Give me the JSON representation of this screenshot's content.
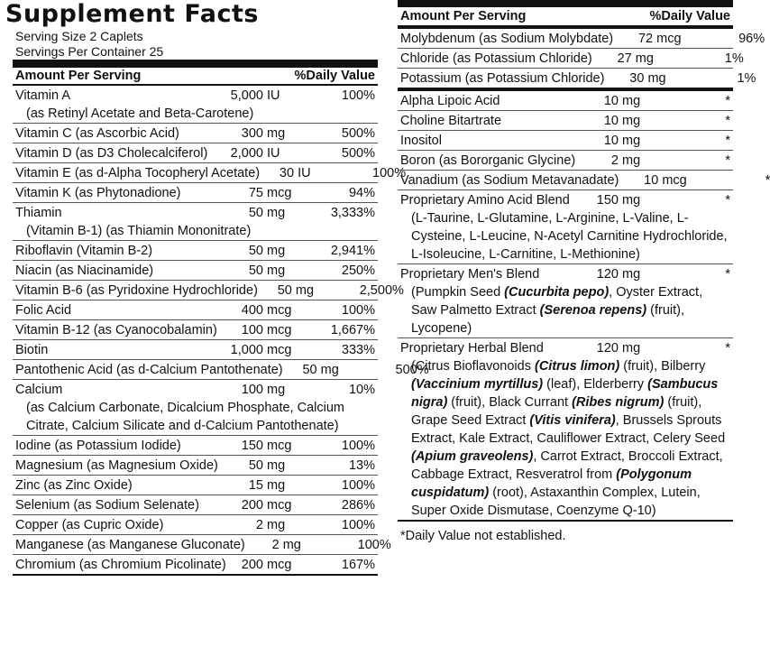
{
  "title": "Supplement Facts",
  "serving_size": "Serving Size 2 Caplets",
  "servings_per_container": "Servings Per Container 25",
  "header": {
    "amount": "Amount Per Serving",
    "dv": "%Daily Value"
  },
  "left_rows": [
    {
      "name": "Vitamin A",
      "amount": "5,000",
      "unit": "IU",
      "dv": "100%",
      "sub": "(as Retinyl Acetate and Beta-Carotene)"
    },
    {
      "name": "Vitamin C (as Ascorbic Acid)",
      "amount": "300",
      "unit": "mg",
      "dv": "500%"
    },
    {
      "name": "Vitamin D (as D3 Cholecalciferol)",
      "amount": "2,000",
      "unit": "IU",
      "dv": "500%"
    },
    {
      "name": "Vitamin E (as d-Alpha Tocopheryl Acetate)",
      "amount": "30",
      "unit": "IU",
      "dv": "100%"
    },
    {
      "name": "Vitamin K (as Phytonadione)",
      "amount": "75",
      "unit": "mcg",
      "dv": "94%"
    },
    {
      "name": "Thiamin",
      "amount": "50",
      "unit": "mg",
      "dv": "3,333%",
      "sub": "(Vitamin B-1) (as Thiamin Mononitrate)"
    },
    {
      "name": "Riboflavin (Vitamin B-2)",
      "amount": "50",
      "unit": "mg",
      "dv": "2,941%"
    },
    {
      "name": "Niacin (as Niacinamide)",
      "amount": "50",
      "unit": "mg",
      "dv": "250%"
    },
    {
      "name": "Vitamin B-6 (as Pyridoxine Hydrochloride)",
      "amount": "50",
      "unit": "mg",
      "dv": "2,500%"
    },
    {
      "name": "Folic Acid",
      "amount": "400",
      "unit": "mcg",
      "dv": "100%"
    },
    {
      "name": "Vitamin B-12 (as Cyanocobalamin)",
      "amount": "100",
      "unit": "mcg",
      "dv": "1,667%"
    },
    {
      "name": "Biotin",
      "amount": "1,000",
      "unit": "mcg",
      "dv": "333%"
    },
    {
      "name": "Pantothenic Acid (as d-Calcium Pantothenate)",
      "amount": "50",
      "unit": "mg",
      "dv": "500%"
    },
    {
      "name": "Calcium",
      "amount": "100",
      "unit": "mg",
      "dv": "10%",
      "sub": "(as Calcium Carbonate, Dicalcium Phosphate, Calcium Citrate, Calcium Silicate and d-Calcium Pantothenate)"
    },
    {
      "name": "Iodine (as Potassium Iodide)",
      "amount": "150",
      "unit": "mcg",
      "dv": "100%"
    },
    {
      "name": "Magnesium (as Magnesium Oxide)",
      "amount": "50",
      "unit": "mg",
      "dv": "13%"
    },
    {
      "name": "Zinc (as Zinc Oxide)",
      "amount": "15",
      "unit": "mg",
      "dv": "100%"
    },
    {
      "name": "Selenium (as Sodium Selenate)",
      "amount": "200",
      "unit": "mcg",
      "dv": "286%"
    },
    {
      "name": "Copper (as Cupric Oxide)",
      "amount": "2",
      "unit": "mg",
      "dv": "100%"
    },
    {
      "name": "Manganese (as Manganese Gluconate)",
      "amount": "2",
      "unit": "mg",
      "dv": "100%"
    },
    {
      "name": "Chromium (as Chromium Picolinate)",
      "amount": "200",
      "unit": "mcg",
      "dv": "167%"
    }
  ],
  "right_group1": [
    {
      "name": "Molybdenum (as Sodium Molybdate)",
      "amount": "72",
      "unit": "mcg",
      "dv": "96%"
    },
    {
      "name": "Chloride (as Potassium Chloride)",
      "amount": "27",
      "unit": "mg",
      "dv": "1%"
    },
    {
      "name": "Potassium (as Potassium Chloride)",
      "amount": "30",
      "unit": "mg",
      "dv": "1%"
    }
  ],
  "right_group2": [
    {
      "name": "Alpha Lipoic Acid",
      "amount": "10",
      "unit": "mg",
      "dv": "*"
    },
    {
      "name": "Choline Bitartrate",
      "amount": "10",
      "unit": "mg",
      "dv": "*"
    },
    {
      "name": "Inositol",
      "amount": "10",
      "unit": "mg",
      "dv": "*"
    },
    {
      "name": "Boron (as Bororganic Glycine)",
      "amount": "2",
      "unit": "mg",
      "dv": "*"
    },
    {
      "name": "Vanadium (as Sodium Metavanadate)",
      "amount": "10",
      "unit": "mcg",
      "dv": "*"
    }
  ],
  "blends": {
    "amino": {
      "name": "Proprietary Amino Acid Blend",
      "amount": "150",
      "unit": "mg",
      "dv": "*",
      "detail": "(L-Taurine, L-Glutamine, L-Arginine, L-Valine, L-Cysteine, L-Leucine, N-Acetyl Carnitine Hydrochloride, L-Isoleucine, L-Carnitine, L-Methionine)"
    },
    "mens": {
      "name": "Proprietary Men's Blend",
      "amount": "120",
      "unit": "mg",
      "dv": "*",
      "d1": "(Pumpkin Seed ",
      "d1i": "(Cucurbita pepo)",
      "d2": ", Oyster Extract, Saw Palmetto Extract ",
      "d2i": "(Serenoa repens)",
      "d3": " (fruit), Lycopene)"
    },
    "herbal": {
      "name": "Proprietary Herbal Blend",
      "amount": "120",
      "unit": "mg",
      "dv": "*",
      "p1": "(Citrus Bioflavonoids ",
      "i1": "(Citrus limon)",
      "p2": " (fruit), Bilberry ",
      "i2": "(Vaccinium myrtillus)",
      "p3": " (leaf), Elderberry ",
      "i3": "(Sambucus nigra)",
      "p4": " (fruit), Black Currant ",
      "i4": "(Ribes nigrum)",
      "p5": " (fruit), Grape Seed Extract ",
      "i5": "(Vitis vinifera)",
      "p6": ", Brussels Sprouts Extract, Kale Extract, Cauliflower Extract, Celery Seed ",
      "i6": "(Apium graveolens)",
      "p7": ", Carrot Extract, Broccoli Extract, Cabbage Extract, Resveratrol from ",
      "i7": "(Polygonum cuspidatum)",
      "p8": " (root), Astaxanthin Complex, Lutein, Super Oxide Dismutase, Coenzyme Q-10)"
    }
  },
  "footnote": "*Daily Value not established."
}
